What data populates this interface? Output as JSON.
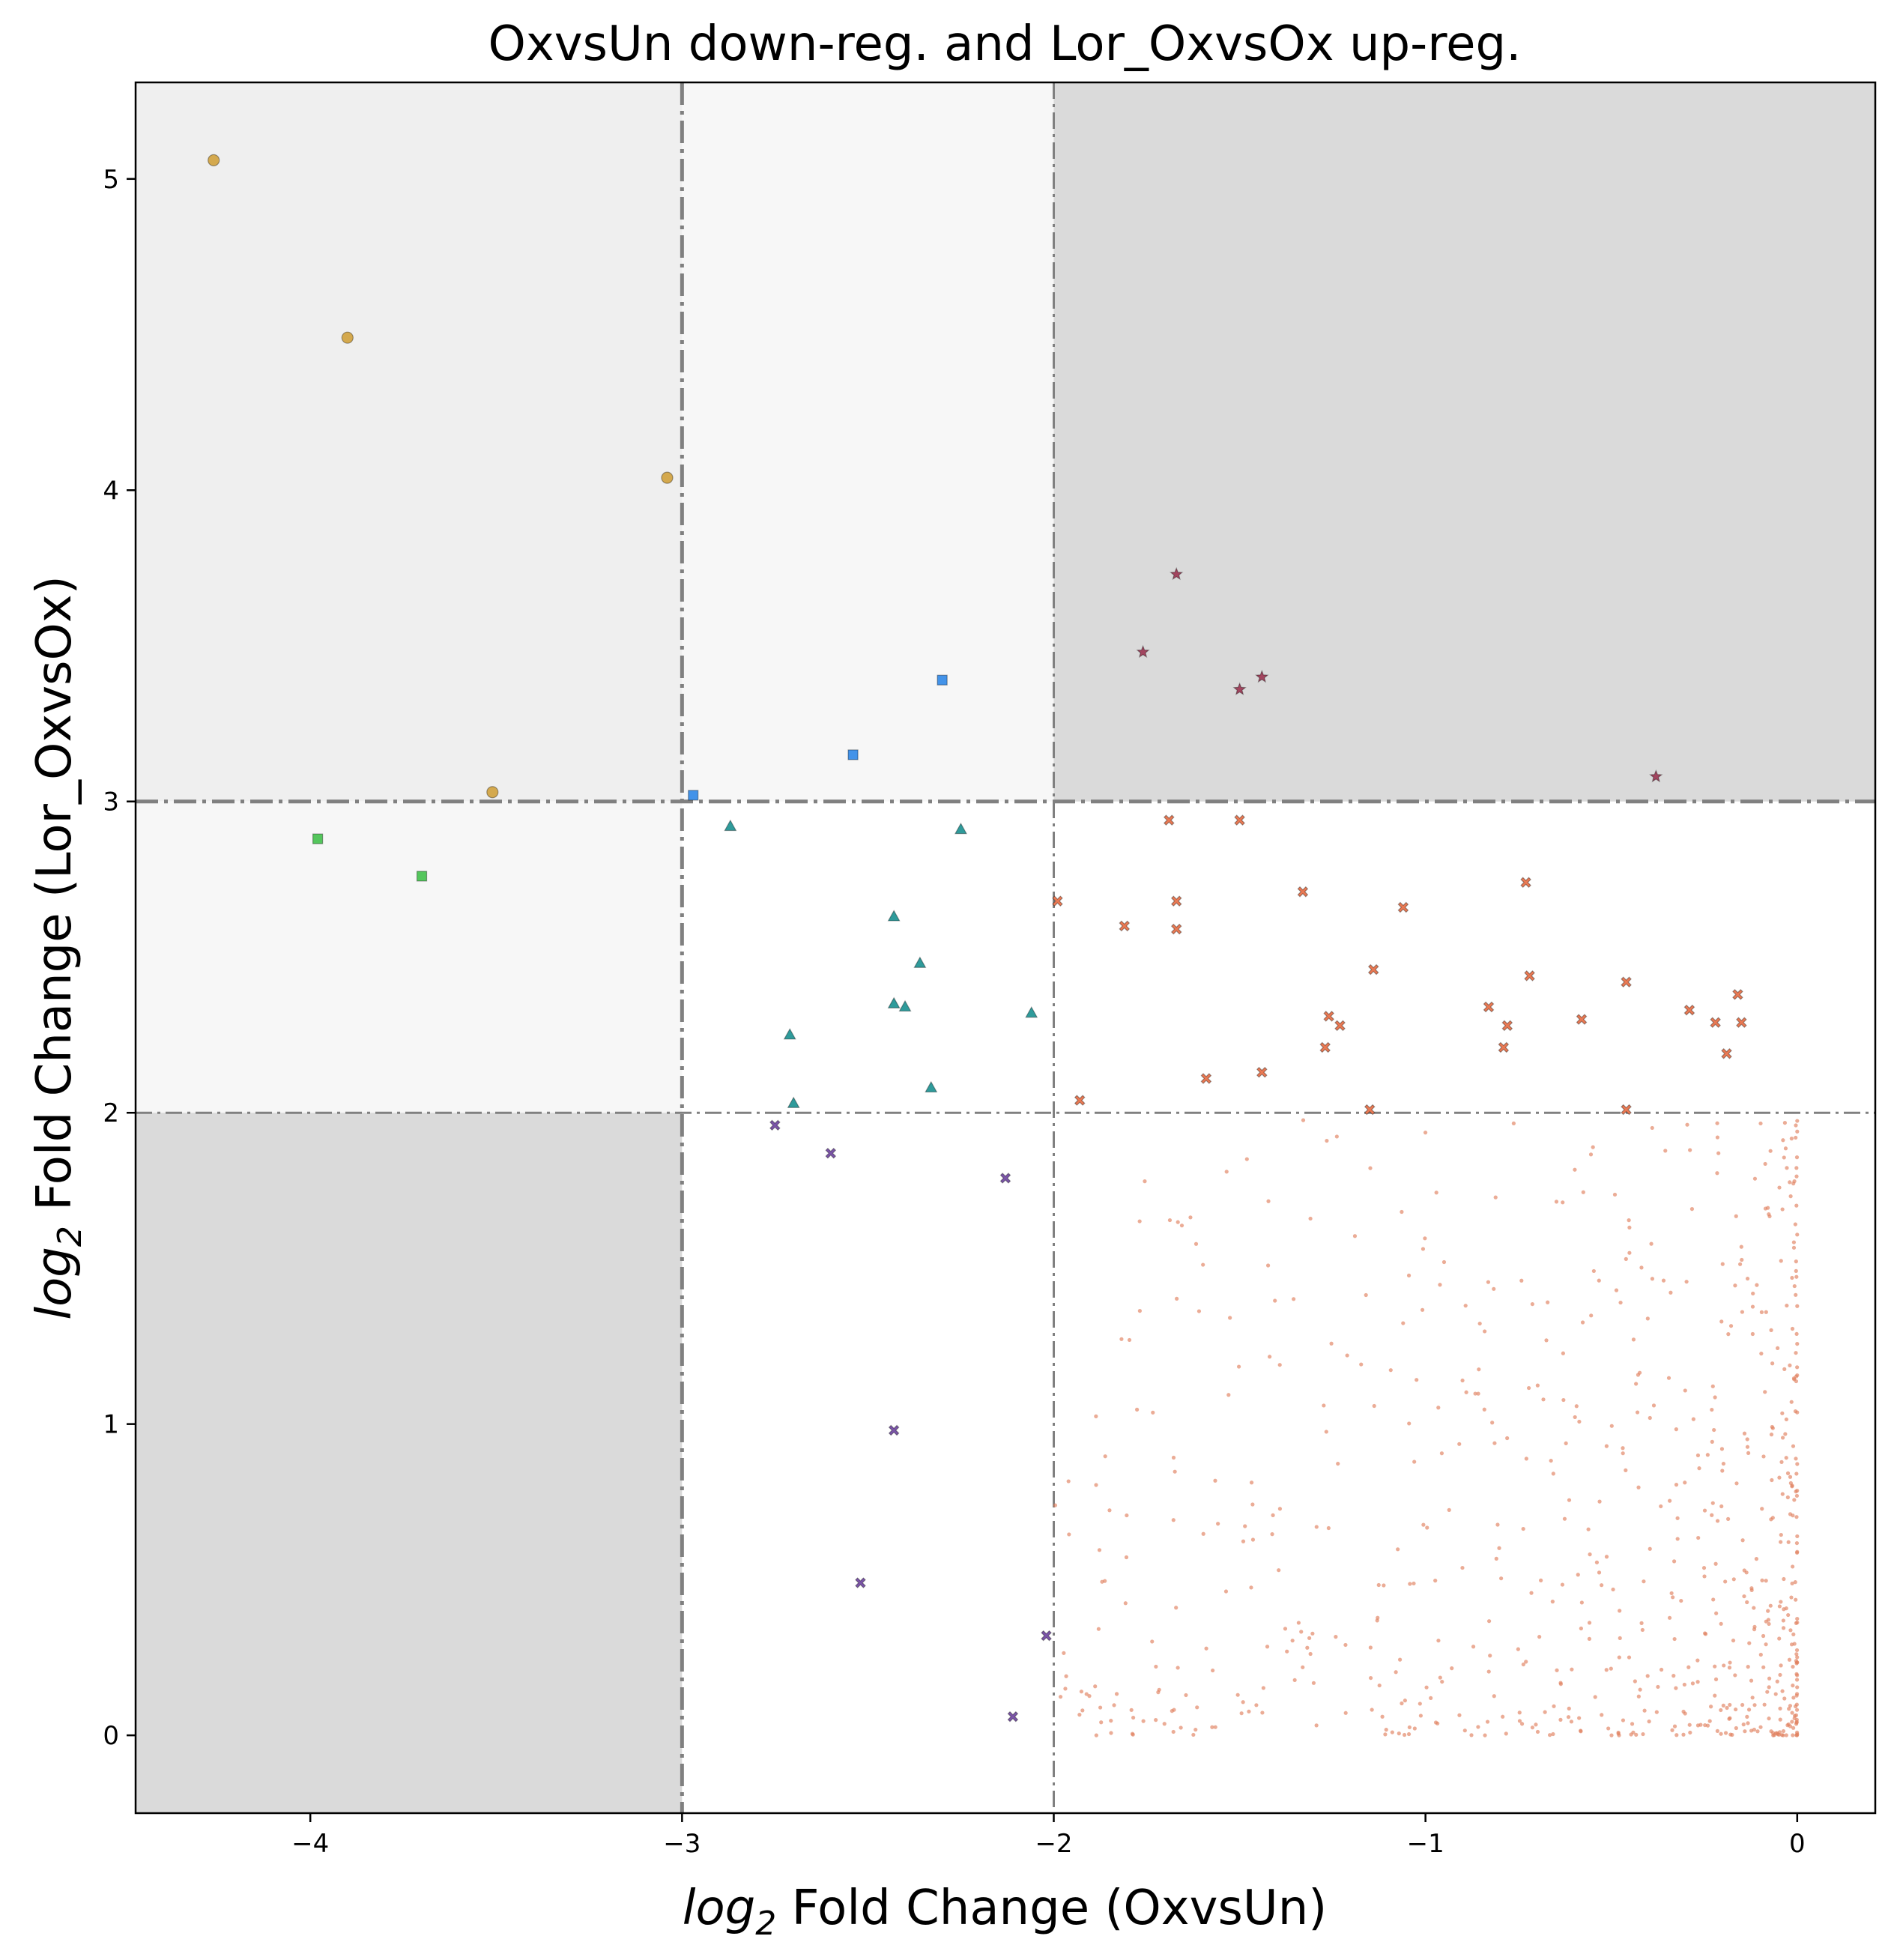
{
  "chart_data": {
    "type": "scatter",
    "title": "OxvsUn down-reg. and Lor_OxvsOx up-reg.",
    "xlabel": {
      "prefix": "log",
      "sub": "2",
      "rest": " Fold Change (OxvsUn)"
    },
    "ylabel": {
      "prefix": "log",
      "sub": "2",
      "rest": " Fold Change (Lor_OxvsOx)"
    },
    "xlim": [
      -4.47,
      0.21
    ],
    "ylim": [
      -0.25,
      5.31
    ],
    "xticks": [
      {
        "value": -4,
        "label": "−4"
      },
      {
        "value": -3,
        "label": "−3"
      },
      {
        "value": -2,
        "label": "−2"
      },
      {
        "value": -1,
        "label": "−1"
      },
      {
        "value": 0,
        "label": "0"
      }
    ],
    "yticks": [
      {
        "value": 0,
        "label": "0"
      },
      {
        "value": 1,
        "label": "1"
      },
      {
        "value": 2,
        "label": "2"
      },
      {
        "value": 3,
        "label": "3"
      },
      {
        "value": 4,
        "label": "4"
      },
      {
        "value": 5,
        "label": "5"
      }
    ],
    "grid": false,
    "legend": "none",
    "regions": [
      {
        "x": [
          -4.47,
          -3
        ],
        "y": [
          3,
          5.31
        ],
        "color": "#efefef"
      },
      {
        "x": [
          -3,
          -2
        ],
        "y": [
          3,
          5.31
        ],
        "color": "#f7f7f7"
      },
      {
        "x": [
          -2,
          0.21
        ],
        "y": [
          3,
          5.31
        ],
        "color": "#dadada"
      },
      {
        "x": [
          -4.47,
          -3
        ],
        "y": [
          2,
          3
        ],
        "color": "#f7f7f7"
      },
      {
        "x": [
          -4.47,
          -3
        ],
        "y": [
          -0.25,
          2
        ],
        "color": "#dadada"
      }
    ],
    "thresholds": {
      "vertical": [
        {
          "value": -3,
          "style": "strong"
        },
        {
          "value": -2,
          "style": "light"
        }
      ],
      "horizontal": [
        {
          "value": 3,
          "style": "strong"
        },
        {
          "value": 2,
          "style": "light"
        }
      ]
    },
    "series": [
      {
        "marker": "circle",
        "color": "#d4a94e",
        "points": [
          [
            -4.26,
            5.06
          ],
          [
            -3.9,
            4.49
          ],
          [
            -3.04,
            4.04
          ],
          [
            -3.51,
            3.03
          ]
        ]
      },
      {
        "marker": "square",
        "color": "#54c65c",
        "points": [
          [
            -3.98,
            2.88
          ],
          [
            -3.7,
            2.76
          ]
        ]
      },
      {
        "marker": "square",
        "color": "#4393e9",
        "points": [
          [
            -2.3,
            3.39
          ],
          [
            -2.54,
            3.15
          ],
          [
            -2.97,
            3.02
          ]
        ]
      },
      {
        "marker": "star",
        "color": "#a2455f",
        "points": [
          [
            -1.67,
            3.73
          ],
          [
            -1.76,
            3.48
          ],
          [
            -1.44,
            3.4
          ],
          [
            -1.5,
            3.36
          ],
          [
            -0.38,
            3.08
          ]
        ]
      },
      {
        "marker": "triangle",
        "color": "#2f9b9b",
        "points": [
          [
            -2.87,
            2.92
          ],
          [
            -2.25,
            2.91
          ],
          [
            -2.43,
            2.63
          ],
          [
            -2.36,
            2.48
          ],
          [
            -2.43,
            2.35
          ],
          [
            -2.4,
            2.34
          ],
          [
            -2.06,
            2.32
          ],
          [
            -2.71,
            2.25
          ],
          [
            -2.33,
            2.08
          ],
          [
            -2.7,
            2.03
          ]
        ]
      },
      {
        "marker": "x",
        "color": "#7b55a8",
        "points": [
          [
            -2.75,
            1.96
          ],
          [
            -2.6,
            1.87
          ],
          [
            -2.13,
            1.79
          ],
          [
            -2.43,
            0.98
          ],
          [
            -2.52,
            0.49
          ],
          [
            -2.02,
            0.32
          ],
          [
            -2.11,
            0.06
          ]
        ]
      },
      {
        "marker": "x",
        "color": "#ea7a54",
        "points": [
          [
            -1.69,
            2.94
          ],
          [
            -1.5,
            2.94
          ],
          [
            -0.73,
            2.74
          ],
          [
            -1.33,
            2.71
          ],
          [
            -1.99,
            2.68
          ],
          [
            -1.67,
            2.68
          ],
          [
            -1.06,
            2.66
          ],
          [
            -1.81,
            2.6
          ],
          [
            -1.67,
            2.59
          ],
          [
            -1.14,
            2.46
          ],
          [
            -0.72,
            2.44
          ],
          [
            -0.46,
            2.42
          ],
          [
            -0.16,
            2.38
          ],
          [
            -0.83,
            2.34
          ],
          [
            -0.29,
            2.33
          ],
          [
            -1.26,
            2.31
          ],
          [
            -0.58,
            2.3
          ],
          [
            -0.22,
            2.29
          ],
          [
            -0.15,
            2.29
          ],
          [
            -0.78,
            2.28
          ],
          [
            -1.23,
            2.28
          ],
          [
            -1.27,
            2.21
          ],
          [
            -0.79,
            2.21
          ],
          [
            -0.19,
            2.19
          ],
          [
            -1.44,
            2.13
          ],
          [
            -1.59,
            2.11
          ],
          [
            -1.93,
            2.04
          ],
          [
            -1.15,
            2.01
          ],
          [
            -0.46,
            2.01
          ]
        ]
      },
      {
        "marker": "dot",
        "color": "#e0805e",
        "opacity": 0.65,
        "generated": true,
        "count": 700,
        "xrange": [
          -2.0,
          0
        ],
        "yrange": [
          0,
          1.98
        ],
        "seed": 7
      }
    ]
  }
}
